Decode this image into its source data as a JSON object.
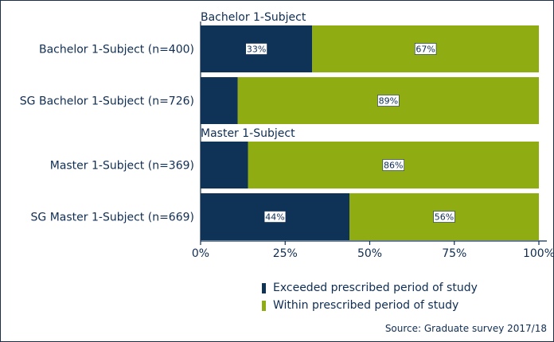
{
  "chart_data": {
    "type": "bar",
    "orientation": "horizontal",
    "stacked": true,
    "groups": [
      {
        "label": "Bachelor 1-Subject",
        "categories": [
          "Bachelor 1-Subject (n=400)",
          "SG Bachelor 1-Subject (n=726)"
        ]
      },
      {
        "label": "Master 1-Subject",
        "categories": [
          "Master 1-Subject (n=369)",
          "SG Master 1-Subject (n=669)"
        ]
      }
    ],
    "categories": [
      "Bachelor 1-Subject (n=400)",
      "SG Bachelor 1-Subject (n=726)",
      "Master 1-Subject (n=369)",
      "SG Master 1-Subject (n=669)"
    ],
    "series": [
      {
        "name": "Exceeded prescribed period of study",
        "values": [
          33,
          11,
          14,
          44
        ],
        "data_labels": [
          "33%",
          "",
          "",
          "44%"
        ],
        "color": "#0f3257"
      },
      {
        "name": "Within prescribed period of study",
        "values": [
          67,
          89,
          86,
          56
        ],
        "data_labels": [
          "67%",
          "89%",
          "86%",
          "56%"
        ],
        "color": "#8fac12"
      }
    ],
    "xlim": [
      0,
      100
    ],
    "xticks": [
      0,
      25,
      50,
      75,
      100
    ],
    "xtick_labels": [
      "0%",
      "25%",
      "50%",
      "75%",
      "100%"
    ],
    "grid": false,
    "legend_position": "bottom-right"
  },
  "source": "Source: Graduate survey 2017/18"
}
